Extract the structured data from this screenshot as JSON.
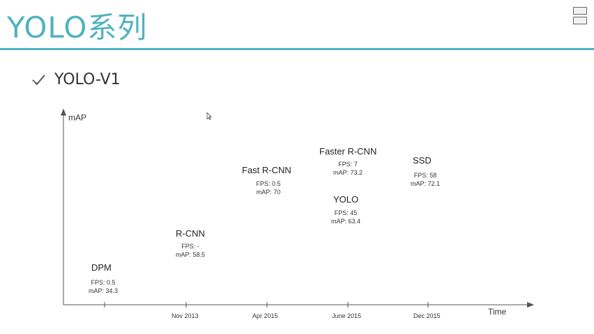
{
  "header": {
    "title": "YOLO系列"
  },
  "bullet": {
    "text": "YOLO-V1",
    "icon": "check-icon"
  },
  "chart_data": {
    "type": "scatter",
    "ylabel": "mAP",
    "xlabel": "Time",
    "x_ticks": [
      "Nov 2013",
      "Apr 2015",
      "June 2015",
      "Dec 2015"
    ],
    "points": [
      {
        "name": "DPM",
        "fps": "FPS: 0.5",
        "map": "mAP: 34.3"
      },
      {
        "name": "R-CNN",
        "fps": "FPS: -",
        "map": "mAP: 58.5"
      },
      {
        "name": "Fast R-CNN",
        "fps": "FPS: 0.5",
        "map": "mAP: 70"
      },
      {
        "name": "Faster R-CNN",
        "fps": "FPS: 7",
        "map": "mAP: 73.2"
      },
      {
        "name": "YOLO",
        "fps": "FPS: 45",
        "map": "mAP: 63.4"
      },
      {
        "name": "SSD",
        "fps": "FPS: 58",
        "map": "mAP: 72.1"
      }
    ]
  },
  "colors": {
    "accent": "#4fb3bf",
    "text": "#333333"
  }
}
